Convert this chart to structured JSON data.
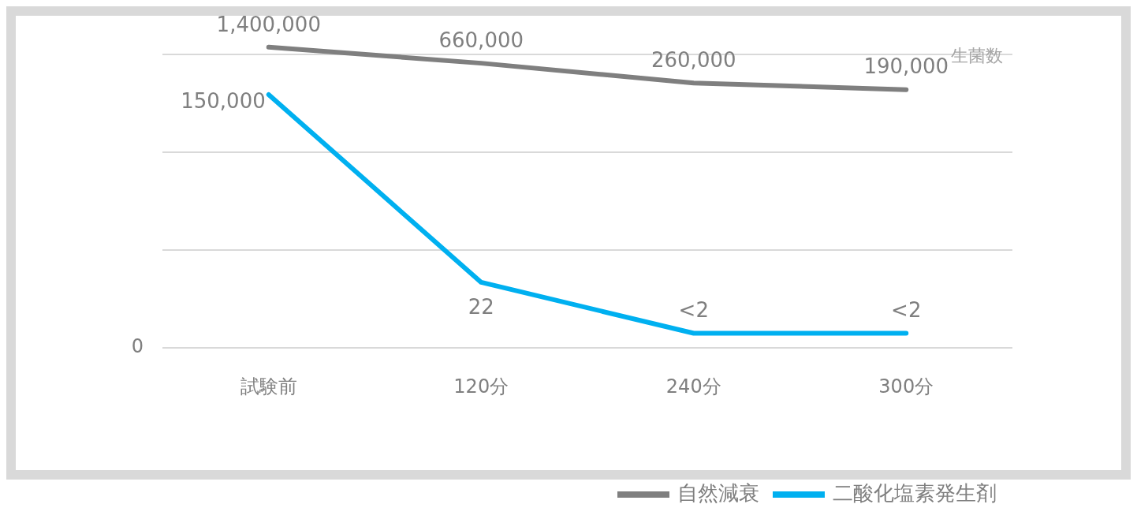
{
  "chart_data": {
    "type": "line",
    "ylabel": "生菌数",
    "categories": [
      "試験前",
      "120分",
      "240分",
      "300分"
    ],
    "series": [
      {
        "name": "自然減衰",
        "color": "#7f7f7f",
        "values": [
          1400000,
          660000,
          260000,
          190000
        ],
        "value_labels": [
          "1,400,000",
          "660,000",
          "260,000",
          "190,000"
        ]
      },
      {
        "name": "二酸化塩素発生剤",
        "color": "#00b0f0",
        "values": [
          150000,
          22,
          2,
          2
        ],
        "value_labels": [
          "150,000",
          "22",
          "<2",
          "<2"
        ]
      }
    ],
    "log": "y",
    "annotations": [
      "0"
    ],
    "yticks": [
      {
        "value": 1,
        "label": null
      },
      {
        "value": 100,
        "label": null
      },
      {
        "value": 10000,
        "label": null
      },
      {
        "value": 1000000,
        "label": null
      }
    ],
    "grid": "y",
    "legend": "bottom right",
    "marker": "none",
    "line_style": "solid"
  }
}
